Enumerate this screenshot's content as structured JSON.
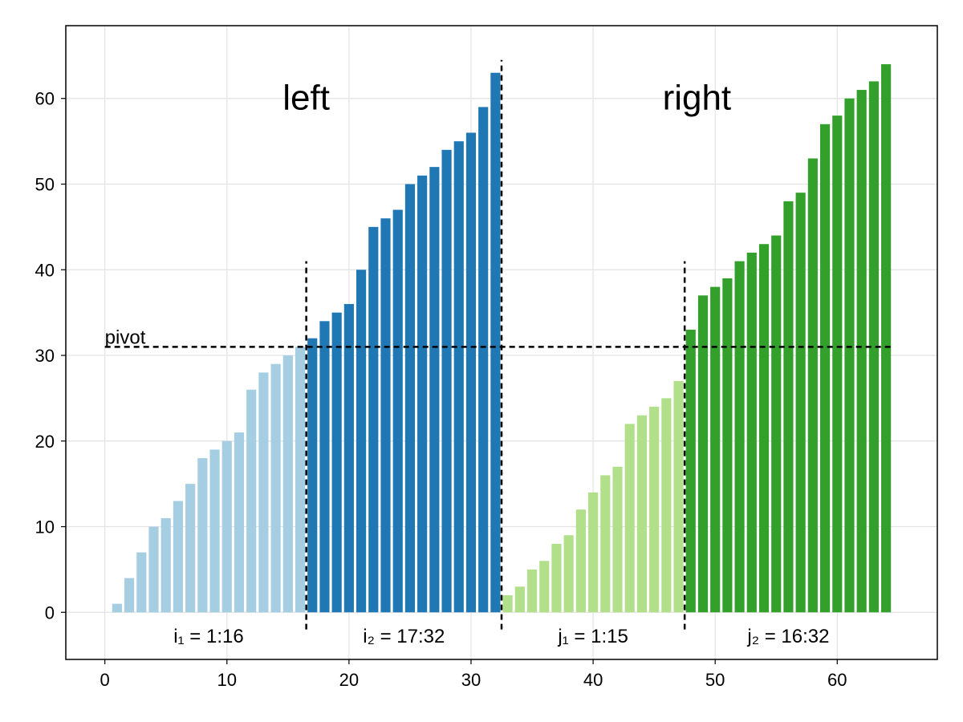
{
  "chart_data": {
    "type": "bar",
    "xlim": [
      -3.2,
      68.2
    ],
    "ylim": [
      -5.5,
      68.5
    ],
    "xticks": [
      0,
      10,
      20,
      30,
      40,
      50,
      60
    ],
    "yticks": [
      0,
      10,
      20,
      30,
      40,
      50,
      60
    ],
    "grid": true,
    "pivot": 31,
    "annotations": {
      "pivot_label": "pivot",
      "left_title": "left",
      "right_title": "right",
      "i1_label": "i₁ = 1:16",
      "i2_label": "i₂ = 17:32",
      "j1_label": "j₁ = 1:15",
      "j2_label": "j₂ = 16:32"
    },
    "series": [
      {
        "color": "#a6cee3",
        "x": [
          1,
          2,
          3,
          4,
          5,
          6,
          7,
          8,
          9,
          10,
          11,
          12,
          13,
          14,
          15,
          16
        ],
        "values": [
          1,
          4,
          7,
          10,
          11,
          13,
          15,
          18,
          19,
          20,
          21,
          26,
          28,
          29,
          30,
          31
        ]
      },
      {
        "color": "#1f78b4",
        "x": [
          17,
          18,
          19,
          20,
          21,
          22,
          23,
          24,
          25,
          26,
          27,
          28,
          29,
          30,
          31,
          32
        ],
        "values": [
          32,
          34,
          35,
          36,
          40,
          45,
          46,
          47,
          50,
          51,
          52,
          54,
          55,
          56,
          59,
          63
        ]
      },
      {
        "color": "#b2df8a",
        "x": [
          33,
          34,
          35,
          36,
          37,
          38,
          39,
          40,
          41,
          42,
          43,
          44,
          45,
          46,
          47
        ],
        "values": [
          2,
          3,
          5,
          6,
          8,
          9,
          12,
          14,
          16,
          17,
          22,
          23,
          24,
          25,
          27
        ]
      },
      {
        "color": "#33a02c",
        "x": [
          48,
          49,
          50,
          51,
          52,
          53,
          54,
          55,
          56,
          57,
          58,
          59,
          60,
          61,
          62,
          63,
          64
        ],
        "values": [
          33,
          37,
          38,
          39,
          41,
          42,
          43,
          44,
          48,
          49,
          53,
          57,
          58,
          60,
          61,
          62,
          64
        ]
      }
    ],
    "dividers": [
      {
        "x": 16.5,
        "ytop": 41
      },
      {
        "x": 32.5,
        "ytop": 64.5
      },
      {
        "x": 47.5,
        "ytop": 41
      }
    ],
    "label_positions": {
      "left_title": [
        16.5,
        60
      ],
      "right_title": [
        48.5,
        60
      ],
      "i1_label": [
        8.5,
        -2.7
      ],
      "i2_label": [
        24.5,
        -2.7
      ],
      "j1_label": [
        40,
        -2.7
      ],
      "j2_label": [
        56,
        -2.7
      ],
      "pivot_label": [
        0,
        31
      ]
    }
  }
}
